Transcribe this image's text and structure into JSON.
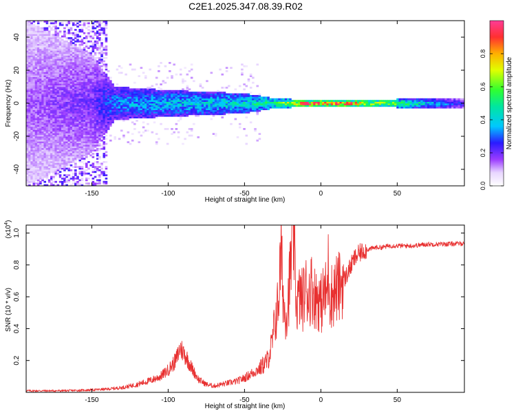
{
  "title": "C2E1.2025.347.08.39.R02",
  "chart_data": [
    {
      "type": "heatmap",
      "name": "spectrogram",
      "xlabel": "Height of straight line (km)",
      "ylabel": "Frequency (Hz)",
      "xlim": [
        -193,
        94
      ],
      "ylim": [
        -50,
        50
      ],
      "xticks": [
        -150,
        -100,
        -50,
        0,
        50
      ],
      "xtick_labels": [
        "-150",
        "-100",
        "-50",
        "0",
        "50"
      ],
      "yticks": [
        -40,
        -20,
        0,
        20,
        40
      ],
      "ytick_labels": [
        "-40",
        "-20",
        "0",
        "20",
        "40"
      ],
      "band_center_hz": 0,
      "band_profile": [
        {
          "x": -193,
          "halfwidth": 50,
          "amplitude": 0.15
        },
        {
          "x": -150,
          "halfwidth": 30,
          "amplitude": 0.2
        },
        {
          "x": -135,
          "halfwidth": 10,
          "amplitude": 0.35
        },
        {
          "x": -100,
          "halfwidth": 8,
          "amplitude": 0.4
        },
        {
          "x": -50,
          "halfwidth": 6,
          "amplitude": 0.45
        },
        {
          "x": -30,
          "halfwidth": 3,
          "amplitude": 0.55
        },
        {
          "x": -10,
          "halfwidth": 2,
          "amplitude": 0.85
        },
        {
          "x": 0,
          "halfwidth": 2,
          "amplitude": 0.8
        },
        {
          "x": 20,
          "halfwidth": 2,
          "amplitude": 0.8
        },
        {
          "x": 50,
          "halfwidth": 2.5,
          "amplitude": 0.6
        },
        {
          "x": 94,
          "halfwidth": 2.5,
          "amplitude": 0.25
        }
      ]
    },
    {
      "type": "line",
      "name": "snr",
      "xlabel": "Height of straight line (km)",
      "ylabel": "SNR (10 * v/v)",
      "yscale_note": "(x10",
      "yscale_exp": "4",
      "yscale_close": ")",
      "color": "#e83030",
      "xlim": [
        -193,
        94
      ],
      "ylim": [
        0,
        1.05
      ],
      "xticks": [
        -150,
        -100,
        -50,
        0,
        50
      ],
      "xtick_labels": [
        "-150",
        "-100",
        "-50",
        "0",
        "50"
      ],
      "yticks": [
        0.2,
        0.4,
        0.6,
        0.8,
        1.0
      ],
      "ytick_labels": [
        "0.2",
        "0.4",
        "0.6",
        "0.8",
        "1.0"
      ],
      "series": [
        {
          "name": "SNR",
          "x": [
            -193,
            -180,
            -170,
            -160,
            -150,
            -140,
            -130,
            -120,
            -110,
            -105,
            -100,
            -95,
            -92,
            -88,
            -85,
            -80,
            -75,
            -70,
            -65,
            -60,
            -55,
            -50,
            -45,
            -40,
            -35,
            -32,
            -30,
            -28,
            -26,
            -24,
            -22,
            -20,
            -18,
            -16,
            -14,
            -12,
            -10,
            -8,
            -6,
            -4,
            -2,
            0,
            2,
            4,
            5,
            6,
            8,
            10,
            12,
            14,
            16,
            18,
            20,
            22,
            25,
            28,
            32,
            36,
            40,
            45,
            50,
            55,
            60,
            70,
            80,
            94
          ],
          "y": [
            0.01,
            0.01,
            0.01,
            0.012,
            0.015,
            0.02,
            0.03,
            0.05,
            0.08,
            0.1,
            0.14,
            0.2,
            0.28,
            0.22,
            0.16,
            0.08,
            0.05,
            0.04,
            0.05,
            0.06,
            0.07,
            0.09,
            0.12,
            0.15,
            0.2,
            0.3,
            0.45,
            0.55,
            0.88,
            0.5,
            0.52,
            0.75,
            1.05,
            0.55,
            0.6,
            0.58,
            0.65,
            0.62,
            0.66,
            0.6,
            0.6,
            0.55,
            0.62,
            0.62,
            0.8,
            0.6,
            0.62,
            0.65,
            0.66,
            0.7,
            0.72,
            0.76,
            0.8,
            0.84,
            0.87,
            0.89,
            0.9,
            0.91,
            0.91,
            0.92,
            0.92,
            0.92,
            0.92,
            0.93,
            0.93,
            0.935
          ]
        }
      ]
    }
  ],
  "colorbar": {
    "label": "Normalized spectral amplitude",
    "ticks": [
      0.0,
      0.2,
      0.4,
      0.6,
      0.8
    ],
    "tick_labels": [
      "0.0",
      "0.2",
      "0.4",
      "0.6",
      "0.8"
    ],
    "range": [
      0,
      1
    ]
  }
}
